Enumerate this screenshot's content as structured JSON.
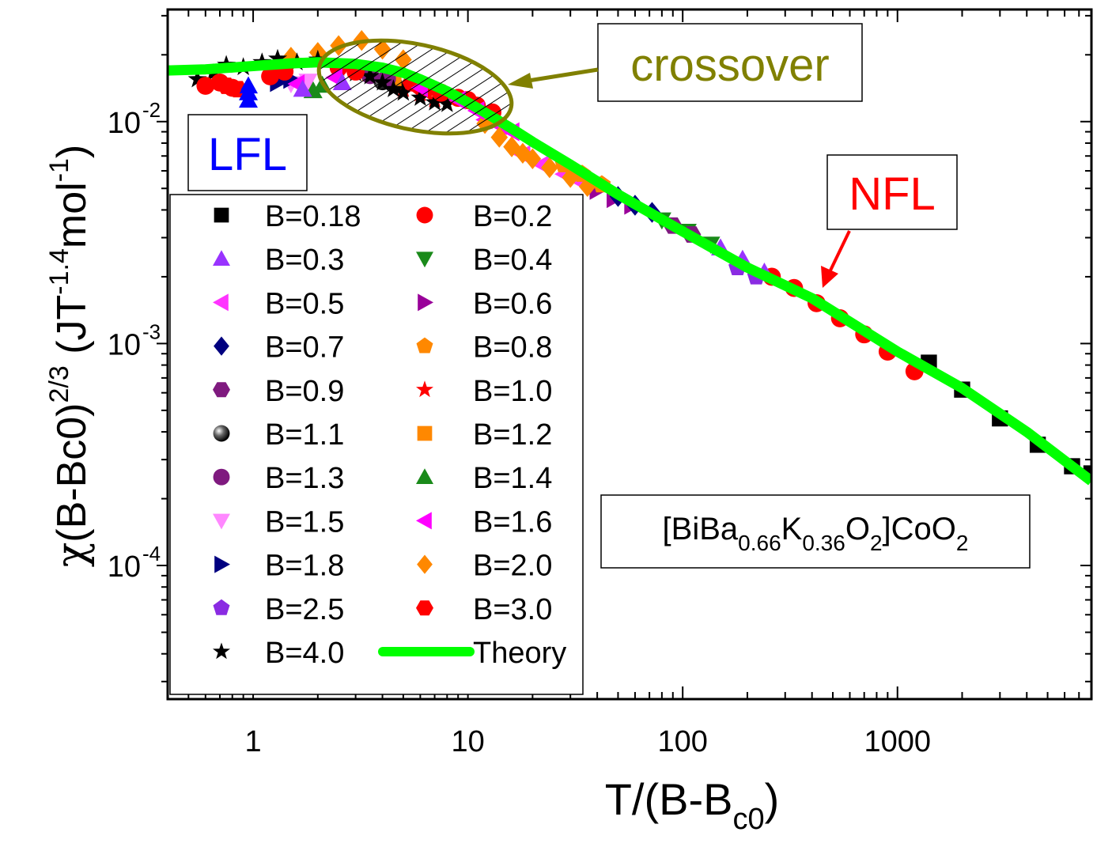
{
  "chart_data": {
    "type": "scatter",
    "scale": {
      "x": "log",
      "y": "log"
    },
    "xlim": [
      0.4,
      8000
    ],
    "ylim": [
      2.5e-05,
      0.032
    ],
    "x_ticks": [
      {
        "value": 1,
        "label": "1"
      },
      {
        "value": 10,
        "label": "10"
      },
      {
        "value": 100,
        "label": "100"
      },
      {
        "value": 1000,
        "label": "1000"
      }
    ],
    "y_ticks": [
      {
        "value": 0.0001,
        "base": "10",
        "exp": "-4"
      },
      {
        "value": 0.001,
        "base": "10",
        "exp": "-3"
      },
      {
        "value": 0.01,
        "base": "10",
        "exp": "-2"
      }
    ],
    "xlabel": {
      "main": "T/(B-B",
      "sub": "c0",
      "tail": ")"
    },
    "ylabel": {
      "chi": "χ",
      "part1": "(B-Bc0)",
      "sup1": "2/3",
      "part2": "(JT",
      "sup2": "-1.4",
      "part3": "mol",
      "sup3": "-1",
      "part4": ")"
    },
    "series": [
      {
        "name": "B=0.18",
        "color": "#000000",
        "marker": "square",
        "x": [
          1400,
          2000,
          3000,
          4500,
          6500,
          8000
        ],
        "y": [
          0.00082,
          0.00062,
          0.00046,
          0.00035,
          0.00028,
          0.00026
        ]
      },
      {
        "name": "B=0.2",
        "color": "#ff0000",
        "marker": "circle",
        "x": [
          260,
          330,
          420,
          540,
          700,
          900,
          1200
        ],
        "y": [
          0.002,
          0.00178,
          0.00152,
          0.0013,
          0.0011,
          0.00092,
          0.00075
        ]
      },
      {
        "name": "B=0.3",
        "color": "#9933ff",
        "marker": "triangle-up",
        "x": [
          150,
          190,
          240
        ],
        "y": [
          0.0027,
          0.0024,
          0.0021
        ]
      },
      {
        "name": "B=0.4",
        "color": "#1a8a1a",
        "marker": "triangle-down",
        "x": [
          80,
          105,
          135
        ],
        "y": [
          0.0036,
          0.0032,
          0.0028
        ]
      },
      {
        "name": "B=0.5",
        "color": "#ff33ff",
        "marker": "triangle-left",
        "x": [
          18,
          22,
          28,
          34
        ],
        "y": [
          0.0071,
          0.0064,
          0.0058,
          0.0053
        ]
      },
      {
        "name": "B=0.6",
        "color": "#990099",
        "marker": "triangle-right",
        "x": [
          40,
          48,
          58
        ],
        "y": [
          0.0049,
          0.0045,
          0.0042
        ]
      },
      {
        "name": "B=0.7",
        "color": "#00007f",
        "marker": "diamond",
        "x": [
          50,
          60,
          72
        ],
        "y": [
          0.0046,
          0.0042,
          0.0039
        ]
      },
      {
        "name": "B=0.8",
        "color": "#ff8800",
        "marker": "pentagon",
        "x": [
          28,
          34,
          42
        ],
        "y": [
          0.0064,
          0.0058,
          0.0052
        ]
      },
      {
        "name": "B=0.9",
        "color": "#7f1a7f",
        "marker": "hexagon",
        "x": [
          90,
          110
        ],
        "y": [
          0.0034,
          0.0031
        ]
      },
      {
        "name": "B=1.0",
        "color": "#ff0000",
        "marker": "star",
        "x": [
          5,
          6,
          7
        ],
        "y": [
          0.014,
          0.0134,
          0.0126
        ]
      },
      {
        "name": "B=1.1",
        "color": "#333333",
        "marker": "sphere",
        "x": [
          4,
          4.5
        ],
        "y": [
          0.0152,
          0.0148
        ]
      },
      {
        "name": "B=1.2",
        "color": "#ff8800",
        "marker": "square",
        "x": [
          3,
          3.5,
          4.5
        ],
        "y": [
          0.0172,
          0.0166,
          0.0156
        ]
      },
      {
        "name": "B=1.3",
        "color": "#7f1a7f",
        "marker": "circle",
        "x": [
          3.5,
          4.2
        ],
        "y": [
          0.0162,
          0.0156
        ]
      },
      {
        "name": "B=1.4",
        "color": "#1a8a1a",
        "marker": "triangle-up",
        "x": [
          1.9,
          2.1
        ],
        "y": [
          0.0138,
          0.0146
        ]
      },
      {
        "name": "B=1.5",
        "color": "#ff88ff",
        "marker": "triangle-down",
        "x": [
          1.5,
          1.8
        ],
        "y": [
          0.0148,
          0.0152
        ]
      },
      {
        "name": "B=1.6",
        "color": "#ff00ff",
        "marker": "triangle-left",
        "x": [
          12,
          14,
          16
        ],
        "y": [
          0.0102,
          0.0096,
          0.009
        ]
      },
      {
        "name": "B=1.8",
        "color": "#000080",
        "marker": "triangle-right",
        "x": [
          1.3,
          1.5
        ],
        "y": [
          0.015,
          0.0155
        ]
      },
      {
        "name": "B=2.0",
        "color": "#ff8800",
        "marker": "diamond",
        "x": [
          1.5,
          2,
          2.5,
          3.2,
          4,
          5,
          12,
          14,
          16,
          18,
          20
        ],
        "y": [
          0.0195,
          0.0205,
          0.022,
          0.0232,
          0.0212,
          0.019,
          0.0098,
          0.0085,
          0.0077,
          0.0072,
          0.0068
        ]
      },
      {
        "name": "B=2.5",
        "color": "#8a2be2",
        "marker": "pentagon",
        "x": [
          180,
          220
        ],
        "y": [
          0.0022,
          0.002
        ]
      },
      {
        "name": "B=3.0",
        "color": "#ff0000",
        "marker": "hexagon",
        "x": [
          0.75,
          0.85
        ],
        "y": [
          0.0145,
          0.014
        ]
      },
      {
        "name": "B=4.0",
        "color": "#000000",
        "marker": "star",
        "x": [
          0.55,
          0.65,
          0.75,
          0.9,
          1.1,
          1.3,
          1.6,
          2,
          2.5,
          3,
          3.5,
          4,
          4.5,
          5,
          6,
          7,
          8
        ],
        "y": [
          0.0155,
          0.0165,
          0.018,
          0.0176,
          0.0185,
          0.0192,
          0.0185,
          0.019,
          0.0175,
          0.0165,
          0.016,
          0.015,
          0.014,
          0.0135,
          0.0128,
          0.0122,
          0.012
        ]
      }
    ],
    "extra_points": [
      {
        "color": "#0000ff",
        "marker": "triangle-up",
        "x": [
          0.95,
          0.95,
          0.95
        ],
        "y": [
          0.0135,
          0.0125,
          0.0145
        ]
      },
      {
        "color": "#ff0000",
        "marker": "circle",
        "x": [
          0.6,
          0.7,
          0.8,
          1.2,
          1.4,
          2.5,
          3,
          5.5,
          6.5,
          7.5,
          9,
          10,
          11,
          13
        ],
        "y": [
          0.0145,
          0.015,
          0.0142,
          0.016,
          0.0168,
          0.0175,
          0.0168,
          0.015,
          0.0142,
          0.0135,
          0.0128,
          0.0125,
          0.0118,
          0.011
        ]
      },
      {
        "color": "#ff00ff",
        "marker": "triangle-left",
        "x": [
          1.6,
          2.4,
          6,
          9,
          11
        ],
        "y": [
          0.0148,
          0.0158,
          0.0142,
          0.0125,
          0.0112
        ]
      },
      {
        "color": "#9933ff",
        "marker": "triangle-up",
        "x": [
          1.7,
          2.6
        ],
        "y": [
          0.014,
          0.015
        ]
      },
      {
        "color": "#ff8800",
        "marker": "diamond",
        "x": [
          24,
          30,
          36
        ],
        "y": [
          0.0062,
          0.0056,
          0.0051
        ]
      }
    ],
    "theory": {
      "name": "Theory",
      "color": "#00ff00",
      "x": [
        0.4,
        0.6,
        1,
        1.5,
        2,
        3,
        4,
        5,
        6,
        8,
        10,
        13,
        16,
        20,
        30,
        50,
        100,
        200,
        400,
        1000,
        2000,
        4000,
        8000
      ],
      "y": [
        0.017,
        0.0172,
        0.0178,
        0.0183,
        0.0185,
        0.0182,
        0.0175,
        0.0166,
        0.0155,
        0.0137,
        0.0122,
        0.0105,
        0.0093,
        0.0081,
        0.0064,
        0.0047,
        0.0032,
        0.0022,
        0.0016,
        0.00092,
        0.00063,
        0.0004,
        0.00024
      ]
    },
    "legend": {
      "placement": "lower-left inside plot",
      "columns": 2
    },
    "annotations": {
      "crossover": {
        "text": "crossover",
        "color": "#808000"
      },
      "lfl": {
        "text": "LFL",
        "color": "#0000ff"
      },
      "nfl": {
        "text": "NFL",
        "color": "#ff0000"
      },
      "formula": {
        "parts": [
          {
            "text": "[BiBa",
            "role": "normal"
          },
          {
            "text": "0.66",
            "role": "sub"
          },
          {
            "text": "K",
            "role": "normal"
          },
          {
            "text": "0.36",
            "role": "sub"
          },
          {
            "text": "O",
            "role": "normal"
          },
          {
            "text": "2",
            "role": "sub"
          },
          {
            "text": "]CoO",
            "role": "normal"
          },
          {
            "text": "2",
            "role": "sub"
          }
        ]
      }
    }
  }
}
